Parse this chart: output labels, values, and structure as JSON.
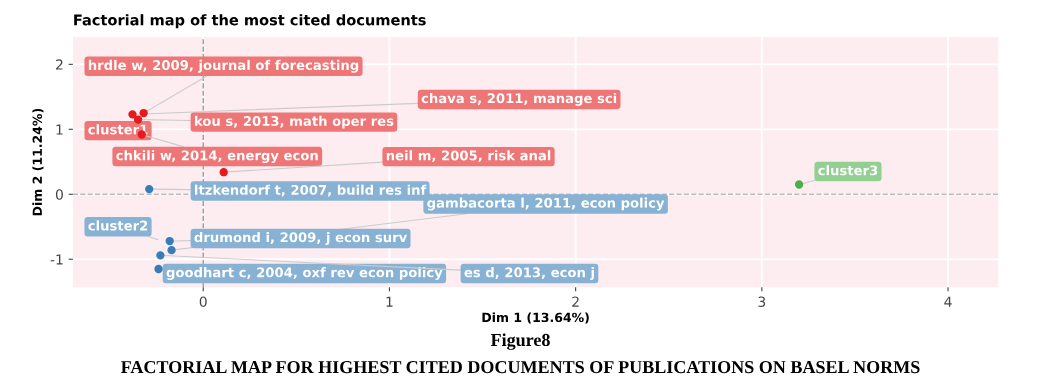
{
  "chart_data": {
    "type": "scatter",
    "title": "Factorial map of the most cited documents",
    "xlabel": "Dim 1 (13.64%)",
    "ylabel": "Dim 2 (11.24%)",
    "series": [
      {
        "name": "cluster1",
        "color": "#e41a1c",
        "x": [
          -0.32,
          -0.38,
          -0.35,
          -0.33,
          0.11
        ],
        "values": [
          1.25,
          1.23,
          1.15,
          0.92,
          0.34
        ]
      },
      {
        "name": "cluster2",
        "color": "#377eb8",
        "x": [
          -0.29,
          -0.17,
          -0.18,
          -0.24,
          -0.23
        ],
        "values": [
          0.08,
          -0.86,
          -0.72,
          -1.15,
          -0.94
        ]
      },
      {
        "name": "cluster3",
        "color": "#4daf4a",
        "x": [
          3.2
        ],
        "values": [
          0.15
        ]
      }
    ],
    "xlim": [
      -0.7,
      4.27
    ],
    "ylim": [
      -1.43,
      2.42
    ],
    "xticks": [
      0,
      1,
      2,
      3,
      4
    ],
    "yticks": [
      {
        "value": -1,
        "label": "-1"
      },
      0,
      1,
      2
    ],
    "grid": true,
    "marker": "circle",
    "ref_lines": [
      {
        "axis": "x",
        "value": 0,
        "color": "#999999",
        "line_style": "dashed"
      },
      {
        "axis": "y",
        "value": 0,
        "color": "#bbbbbb",
        "line_style": "dashed"
      }
    ],
    "annotations": [
      {
        "text": "hrdle w, 2009, journal of forecasting",
        "x": -0.32,
        "y": 1.25
      },
      {
        "text": "chava s, 2011, manage sci",
        "x": -0.38,
        "y": 1.23
      },
      {
        "text": "kou s, 2013, math oper res",
        "x": -0.35,
        "y": 1.15
      },
      {
        "text": "chkili w, 2014, energy econ",
        "x": -0.33,
        "y": 0.92
      },
      {
        "text": "neil m, 2005, risk anal",
        "x": 0.11,
        "y": 0.34
      },
      {
        "text": "ltzkendorf t, 2007, build res inf",
        "x": -0.29,
        "y": 0.08
      },
      {
        "text": "gambacorta l, 2011, econ policy",
        "x": -0.17,
        "y": -0.86
      },
      {
        "text": "drumond i, 2009, j econ surv",
        "x": -0.18,
        "y": -0.72
      },
      {
        "text": "goodhart c, 2004, oxf rev econ policy",
        "x": -0.24,
        "y": -1.15
      },
      {
        "text": "es d, 2013, econ j",
        "x": -0.23,
        "y": -0.94
      },
      "Figure8",
      "FACTORIAL MAP FOR HIGHEST CITED DOCUMENTS OF PUBLICATIONS ON BASEL NORMS"
    ]
  }
}
